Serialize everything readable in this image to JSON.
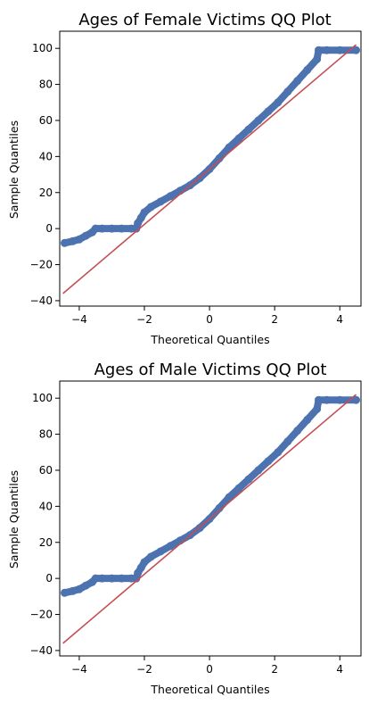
{
  "chart_data": [
    {
      "type": "scatter",
      "title": "Ages of Female Victims QQ Plot",
      "xlabel": "Theoretical Quantiles",
      "ylabel": "Sample Quantiles",
      "xlim": [
        -4.6,
        4.65
      ],
      "ylim": [
        -43,
        109.5
      ],
      "xticks": [
        -4,
        -2,
        0,
        2,
        4
      ],
      "yticks": [
        -40,
        -20,
        0,
        20,
        40,
        60,
        80,
        100
      ],
      "grid": false,
      "colors": {
        "points": "#4c72b0",
        "line": "#c44e52"
      },
      "series": [
        {
          "kind": "points",
          "x": [
            -4.45,
            -4.2,
            -4.0,
            -3.8,
            -3.6,
            -3.5,
            -3.3,
            -3.0,
            -2.7,
            -2.4,
            -2.25,
            -2.2,
            -2.1,
            -2.0,
            -1.8,
            -1.5,
            -1.2,
            -0.9,
            -0.6,
            -0.3,
            0.0,
            0.3,
            0.6,
            0.9,
            1.2,
            1.5,
            1.8,
            2.1,
            2.4,
            2.7,
            3.0,
            3.3,
            3.35,
            3.6,
            4.0,
            4.5
          ],
          "y": [
            -8,
            -7,
            -6,
            -4,
            -2,
            0,
            0,
            0,
            0,
            0,
            0,
            3,
            6,
            9,
            12,
            15,
            18,
            21,
            24,
            28,
            33,
            39,
            45,
            50,
            55,
            60,
            65,
            70,
            76,
            82,
            88,
            94,
            99,
            99,
            99,
            99
          ]
        },
        {
          "kind": "line",
          "x": [
            -4.5,
            4.5
          ],
          "y": [
            -36,
            102
          ]
        }
      ]
    },
    {
      "type": "scatter",
      "title": "Ages of Male Victims QQ Plot",
      "xlabel": "Theoretical Quantiles",
      "ylabel": "Sample Quantiles",
      "xlim": [
        -4.6,
        4.65
      ],
      "ylim": [
        -43,
        109.5
      ],
      "xticks": [
        -4,
        -2,
        0,
        2,
        4
      ],
      "yticks": [
        -40,
        -20,
        0,
        20,
        40,
        60,
        80,
        100
      ],
      "grid": false,
      "colors": {
        "points": "#4c72b0",
        "line": "#c44e52"
      },
      "series": [
        {
          "kind": "points",
          "x": [
            -4.45,
            -4.2,
            -4.0,
            -3.8,
            -3.6,
            -3.5,
            -3.3,
            -3.0,
            -2.7,
            -2.4,
            -2.25,
            -2.2,
            -2.1,
            -2.0,
            -1.8,
            -1.5,
            -1.2,
            -0.9,
            -0.6,
            -0.3,
            0.0,
            0.3,
            0.6,
            0.9,
            1.2,
            1.5,
            1.8,
            2.1,
            2.4,
            2.7,
            3.0,
            3.3,
            3.35,
            3.6,
            4.0,
            4.5
          ],
          "y": [
            -8,
            -7,
            -6,
            -4,
            -2,
            0,
            0,
            0,
            0,
            0,
            0,
            3,
            6,
            9,
            12,
            15,
            18,
            21,
            24,
            28,
            33,
            39,
            45,
            50,
            55,
            60,
            65,
            70,
            76,
            82,
            88,
            94,
            99,
            99,
            99,
            99
          ]
        },
        {
          "kind": "line",
          "x": [
            -4.5,
            4.5
          ],
          "y": [
            -36,
            102
          ]
        }
      ]
    }
  ]
}
